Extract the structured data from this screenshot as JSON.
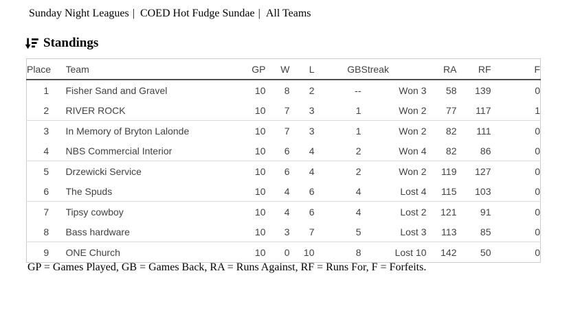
{
  "breadcrumb": {
    "segments": [
      "Sunday Night Leagues",
      "COED Hot Fudge Sundae",
      "All Teams"
    ],
    "separator": "|"
  },
  "heading": {
    "title": "Standings",
    "icon": "sort-descending-icon"
  },
  "standings_table": {
    "columns": [
      "Place",
      "Team",
      "GP",
      "W",
      "L",
      "GB",
      "Streak",
      "RA",
      "RF",
      "F"
    ],
    "rows": [
      {
        "place": "1",
        "team": "Fisher Sand and Gravel",
        "gp": "10",
        "w": "8",
        "l": "2",
        "gb": "--",
        "streak": "Won 3",
        "ra": "58",
        "rf": "139",
        "f": "0"
      },
      {
        "place": "2",
        "team": "RIVER ROCK",
        "gp": "10",
        "w": "7",
        "l": "3",
        "gb": "1",
        "streak": "Won 2",
        "ra": "77",
        "rf": "117",
        "f": "1"
      },
      {
        "place": "3",
        "team": "In Memory of Bryton Lalonde",
        "gp": "10",
        "w": "7",
        "l": "3",
        "gb": "1",
        "streak": "Won 2",
        "ra": "82",
        "rf": "111",
        "f": "0"
      },
      {
        "place": "4",
        "team": "NBS Commercial Interior",
        "gp": "10",
        "w": "6",
        "l": "4",
        "gb": "2",
        "streak": "Won 4",
        "ra": "82",
        "rf": "86",
        "f": "0"
      },
      {
        "place": "5",
        "team": "Drzewicki Service",
        "gp": "10",
        "w": "6",
        "l": "4",
        "gb": "2",
        "streak": "Won 2",
        "ra": "119",
        "rf": "127",
        "f": "0"
      },
      {
        "place": "6",
        "team": "The Spuds",
        "gp": "10",
        "w": "4",
        "l": "6",
        "gb": "4",
        "streak": "Lost 4",
        "ra": "115",
        "rf": "103",
        "f": "0"
      },
      {
        "place": "7",
        "team": "Tipsy cowboy",
        "gp": "10",
        "w": "4",
        "l": "6",
        "gb": "4",
        "streak": "Lost 2",
        "ra": "121",
        "rf": "91",
        "f": "0"
      },
      {
        "place": "8",
        "team": "Bass hardware",
        "gp": "10",
        "w": "3",
        "l": "7",
        "gb": "5",
        "streak": "Lost 3",
        "ra": "113",
        "rf": "85",
        "f": "0"
      },
      {
        "place": "9",
        "team": "ONE Church",
        "gp": "10",
        "w": "0",
        "l": "10",
        "gb": "8",
        "streak": "Lost 10",
        "ra": "142",
        "rf": "50",
        "f": "0"
      }
    ]
  },
  "legend": "GP = Games Played, GB = Games Back, RA = Runs Against, RF = Runs For, F = Forfeits.",
  "colors": {
    "page_background": "#ffffff",
    "table_text": "#414141",
    "header_rule": "#4f4f4f",
    "row_divider": "#d9d9d9",
    "table_border": "#cbcbcb",
    "heading_text": "#000000"
  }
}
